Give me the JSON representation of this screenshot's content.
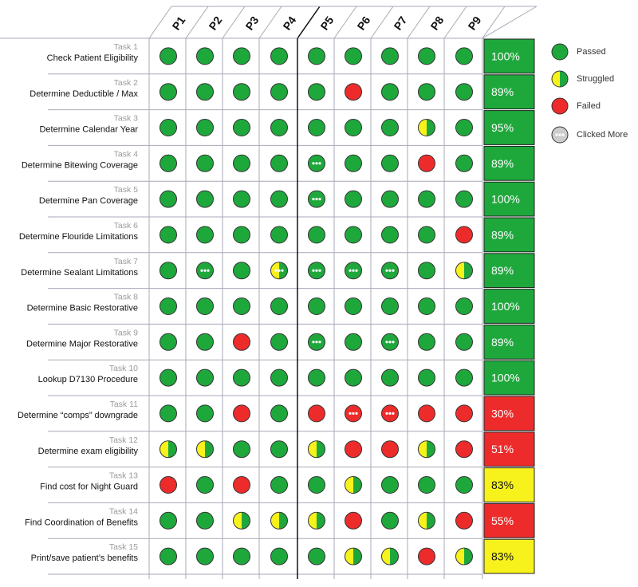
{
  "chart_data": {
    "type": "table",
    "participants": [
      "P1",
      "P2",
      "P3",
      "P4",
      "P5",
      "P6",
      "P7",
      "P8",
      "P9"
    ],
    "tasks": [
      {
        "num": "Task 1",
        "name": "Check Patient Eligibility",
        "results": [
          "P",
          "P",
          "P",
          "P",
          "P",
          "P",
          "P",
          "P",
          "P"
        ],
        "score": "100%",
        "score_status": "pass"
      },
      {
        "num": "Task 2",
        "name": "Determine Deductible / Max",
        "results": [
          "P",
          "P",
          "P",
          "P",
          "P",
          "F",
          "P",
          "P",
          "P"
        ],
        "score": "89%",
        "score_status": "pass"
      },
      {
        "num": "Task 3",
        "name": "Determine Calendar Year",
        "results": [
          "P",
          "P",
          "P",
          "P",
          "P",
          "P",
          "P",
          "S",
          "P"
        ],
        "score": "95%",
        "score_status": "pass"
      },
      {
        "num": "Task 4",
        "name": "Determine Bitewing Coverage",
        "results": [
          "P",
          "P",
          "P",
          "P",
          "C",
          "P",
          "P",
          "F",
          "P"
        ],
        "score": "89%",
        "score_status": "pass"
      },
      {
        "num": "Task 5",
        "name": "Determine Pan Coverage",
        "results": [
          "P",
          "P",
          "P",
          "P",
          "C",
          "P",
          "P",
          "P",
          "P"
        ],
        "score": "100%",
        "score_status": "pass"
      },
      {
        "num": "Task 6",
        "name": "Determine Flouride Limitations",
        "results": [
          "P",
          "P",
          "P",
          "P",
          "P",
          "P",
          "P",
          "P",
          "F"
        ],
        "score": "89%",
        "score_status": "pass"
      },
      {
        "num": "Task 7",
        "name": "Determine Sealant Limitations",
        "results": [
          "P",
          "C",
          "P",
          "SC",
          "C",
          "C",
          "C",
          "P",
          "S"
        ],
        "score": "89%",
        "score_status": "pass"
      },
      {
        "num": "Task 8",
        "name": "Determine Basic Restorative",
        "results": [
          "P",
          "P",
          "P",
          "P",
          "P",
          "P",
          "P",
          "P",
          "P"
        ],
        "score": "100%",
        "score_status": "pass"
      },
      {
        "num": "Task 9",
        "name": "Determine Major Restorative",
        "results": [
          "P",
          "P",
          "F",
          "P",
          "C",
          "P",
          "C",
          "P",
          "P"
        ],
        "score": "89%",
        "score_status": "pass"
      },
      {
        "num": "Task 10",
        "name": "Lookup D7130 Procedure",
        "results": [
          "P",
          "P",
          "P",
          "P",
          "P",
          "P",
          "P",
          "P",
          "P"
        ],
        "score": "100%",
        "score_status": "pass"
      },
      {
        "num": "Task 11",
        "name": "Determine “comps” downgrade",
        "results": [
          "P",
          "P",
          "F",
          "P",
          "F",
          "FC",
          "FC",
          "F",
          "F"
        ],
        "score": "30%",
        "score_status": "fail"
      },
      {
        "num": "Task 12",
        "name": "Determine exam eligibility",
        "results": [
          "S",
          "S",
          "P",
          "P",
          "S",
          "F",
          "F",
          "S",
          "F"
        ],
        "score": "51%",
        "score_status": "fail"
      },
      {
        "num": "Task 13",
        "name": "Find cost for Night Guard",
        "results": [
          "F",
          "P",
          "F",
          "P",
          "P",
          "S",
          "P",
          "P",
          "P"
        ],
        "score": "83%",
        "score_status": "struggle"
      },
      {
        "num": "Task 14",
        "name": "Find Coordination of Benefits",
        "results": [
          "P",
          "P",
          "S",
          "S",
          "S",
          "F",
          "P",
          "S",
          "F"
        ],
        "score": "55%",
        "score_status": "fail"
      },
      {
        "num": "Task 15",
        "name": "Print/save patient’s benefits",
        "results": [
          "P",
          "P",
          "P",
          "P",
          "P",
          "S",
          "S",
          "F",
          "S"
        ],
        "score": "83%",
        "score_status": "struggle"
      }
    ],
    "legend": [
      {
        "key": "P",
        "label": "Passed"
      },
      {
        "key": "S",
        "label": "Struggled"
      },
      {
        "key": "F",
        "label": "Failed"
      },
      {
        "key": "C",
        "label": "Clicked More"
      }
    ],
    "colors": {
      "pass": "#1ea83c",
      "fail": "#ee2b2b",
      "struggle": "#f7f21c",
      "clicked": "#cccccc",
      "grid": "#a9a9b8",
      "divider": "#111111",
      "task_num": "#9a9a9a",
      "task_name": "#111111"
    }
  }
}
